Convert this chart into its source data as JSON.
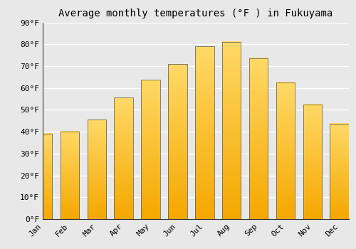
{
  "title": "Average monthly temperatures (°F ) in Fukuyama",
  "months": [
    "Jan",
    "Feb",
    "Mar",
    "Apr",
    "May",
    "Jun",
    "Jul",
    "Aug",
    "Sep",
    "Oct",
    "Nov",
    "Dec"
  ],
  "values": [
    39.2,
    40.1,
    45.5,
    55.6,
    63.7,
    70.9,
    79.0,
    81.1,
    73.6,
    62.6,
    52.5,
    43.7
  ],
  "bar_color_bottom": "#F5A800",
  "bar_color_top": "#FFD966",
  "bar_edge_color": "#555555",
  "ylim": [
    0,
    90
  ],
  "yticks": [
    0,
    10,
    20,
    30,
    40,
    50,
    60,
    70,
    80,
    90
  ],
  "background_color": "#e8e8e8",
  "grid_color": "#ffffff",
  "title_fontsize": 10,
  "tick_fontsize": 8,
  "font_family": "monospace"
}
